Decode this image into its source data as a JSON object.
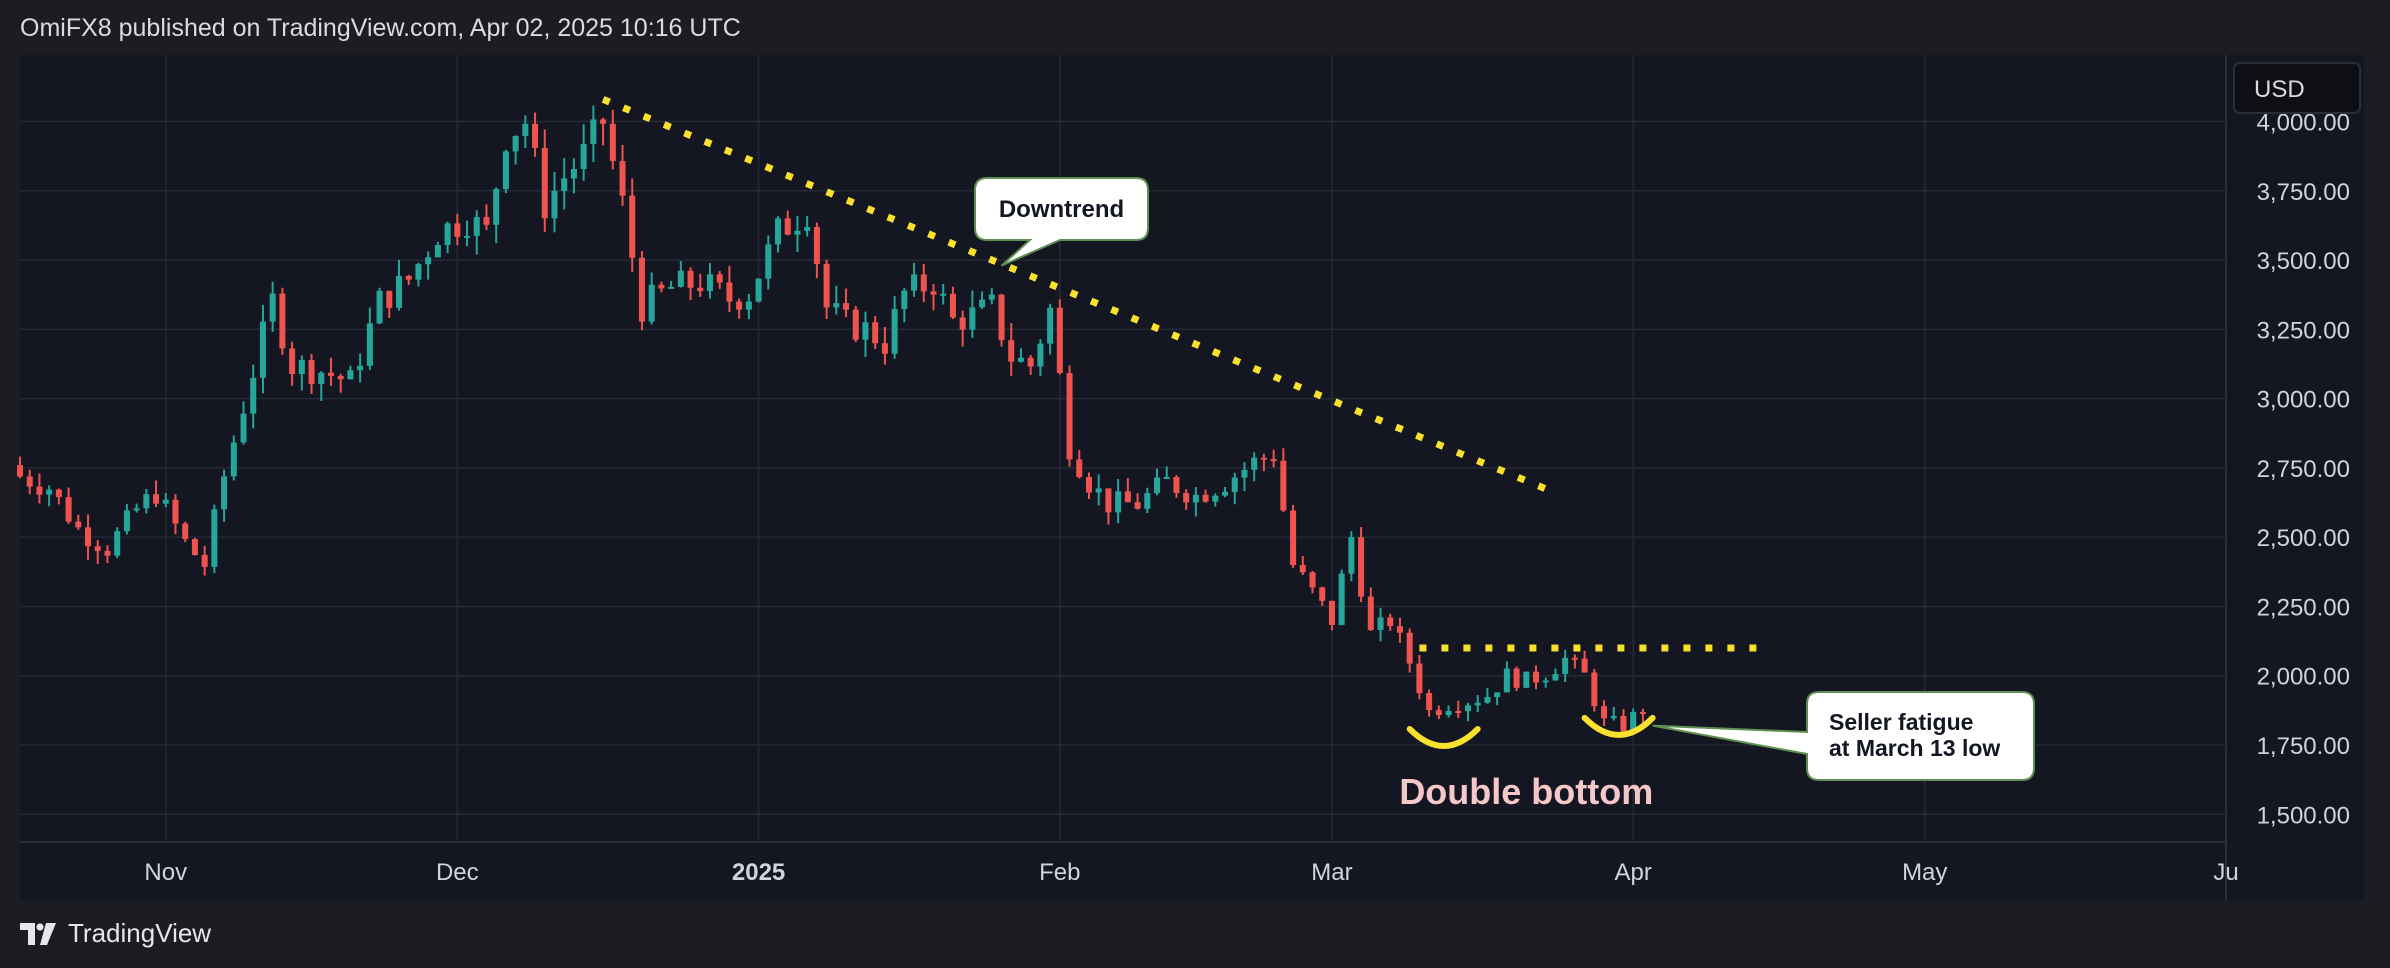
{
  "header": {
    "publish_info": "OmiFX8 published on TradingView.com, Apr 02, 2025 10:16 UTC"
  },
  "footer": {
    "brand": "TradingView"
  },
  "currency_button": {
    "label": "USD"
  },
  "colors": {
    "up": "#26a69a",
    "down": "#ef5350",
    "annotation": "#f9e12e",
    "label_pink": "#f6c7c9",
    "background": "#141721",
    "grid": "#262a36"
  },
  "chart_data": {
    "type": "candlestick",
    "title": "",
    "xlabel": "",
    "ylabel": "",
    "ylim": [
      1400,
      4240
    ],
    "x_range": [
      "2024-10-17",
      "2025-06-01"
    ],
    "yticks": [
      {
        "value": 4000,
        "label": "4,000.00"
      },
      {
        "value": 3750,
        "label": "3,750.00"
      },
      {
        "value": 3500,
        "label": "3,500.00"
      },
      {
        "value": 3250,
        "label": "3,250.00"
      },
      {
        "value": 3000,
        "label": "3,000.00"
      },
      {
        "value": 2750,
        "label": "2,750.00"
      },
      {
        "value": 2500,
        "label": "2,500.00"
      },
      {
        "value": 2250,
        "label": "2,250.00"
      },
      {
        "value": 2000,
        "label": "2,000.00"
      },
      {
        "value": 1750,
        "label": "1,750.00"
      },
      {
        "value": 1500,
        "label": "1,500.00"
      }
    ],
    "xticks": [
      {
        "date": "2024-11-01",
        "label": "Nov",
        "bold": false
      },
      {
        "date": "2024-12-01",
        "label": "Dec",
        "bold": false
      },
      {
        "date": "2025-01-01",
        "label": "2025",
        "bold": true
      },
      {
        "date": "2025-02-01",
        "label": "Feb",
        "bold": false
      },
      {
        "date": "2025-03-01",
        "label": "Mar",
        "bold": false
      },
      {
        "date": "2025-04-01",
        "label": "Apr",
        "bold": false
      },
      {
        "date": "2025-05-01",
        "label": "May",
        "bold": false
      },
      {
        "date": "2025-06-01",
        "label": "Ju",
        "bold": false
      }
    ],
    "anchors": [
      [
        "2024-10-17",
        2720
      ],
      [
        "2024-10-20",
        2680
      ],
      [
        "2024-10-23",
        2530
      ],
      [
        "2024-10-26",
        2460
      ],
      [
        "2024-10-29",
        2600
      ],
      [
        "2024-10-31",
        2660
      ],
      [
        "2024-11-03",
        2480
      ],
      [
        "2024-11-05",
        2400
      ],
      [
        "2024-11-07",
        2720
      ],
      [
        "2024-11-10",
        3100
      ],
      [
        "2024-11-12",
        3350
      ],
      [
        "2024-11-14",
        3120
      ],
      [
        "2024-11-17",
        3100
      ],
      [
        "2024-11-20",
        3060
      ],
      [
        "2024-11-23",
        3350
      ],
      [
        "2024-11-26",
        3430
      ],
      [
        "2024-11-29",
        3600
      ],
      [
        "2024-12-02",
        3650
      ],
      [
        "2024-12-04",
        3600
      ],
      [
        "2024-12-06",
        3950
      ],
      [
        "2024-12-08",
        4000
      ],
      [
        "2024-12-10",
        3700
      ],
      [
        "2024-12-12",
        3800
      ],
      [
        "2024-12-14",
        3880
      ],
      [
        "2024-12-16",
        4000
      ],
      [
        "2024-12-18",
        3700
      ],
      [
        "2024-12-20",
        3330
      ],
      [
        "2024-12-23",
        3400
      ],
      [
        "2024-12-26",
        3420
      ],
      [
        "2024-12-29",
        3360
      ],
      [
        "2024-12-31",
        3380
      ],
      [
        "2025-01-03",
        3600
      ],
      [
        "2025-01-06",
        3680
      ],
      [
        "2025-01-08",
        3330
      ],
      [
        "2025-01-10",
        3270
      ],
      [
        "2025-01-12",
        3250
      ],
      [
        "2025-01-14",
        3200
      ],
      [
        "2025-01-16",
        3380
      ],
      [
        "2025-01-19",
        3420
      ],
      [
        "2025-01-21",
        3280
      ],
      [
        "2025-01-23",
        3300
      ],
      [
        "2025-01-25",
        3330
      ],
      [
        "2025-01-27",
        3150
      ],
      [
        "2025-01-29",
        3120
      ],
      [
        "2025-01-31",
        3320
      ],
      [
        "2025-02-02",
        2830
      ],
      [
        "2025-02-04",
        2700
      ],
      [
        "2025-02-06",
        2620
      ],
      [
        "2025-02-09",
        2620
      ],
      [
        "2025-02-12",
        2700
      ],
      [
        "2025-02-15",
        2650
      ],
      [
        "2025-02-18",
        2700
      ],
      [
        "2025-02-21",
        2770
      ],
      [
        "2025-02-23",
        2800
      ],
      [
        "2025-02-25",
        2400
      ],
      [
        "2025-02-27",
        2300
      ],
      [
        "2025-03-01",
        2200
      ],
      [
        "2025-03-03",
        2500
      ],
      [
        "2025-03-05",
        2150
      ],
      [
        "2025-03-07",
        2200
      ],
      [
        "2025-03-09",
        2050
      ],
      [
        "2025-03-11",
        1870
      ],
      [
        "2025-03-13",
        1900
      ],
      [
        "2025-03-15",
        1910
      ],
      [
        "2025-03-17",
        1930
      ],
      [
        "2025-03-19",
        2000
      ],
      [
        "2025-03-21",
        1980
      ],
      [
        "2025-03-23",
        2010
      ],
      [
        "2025-03-25",
        2060
      ],
      [
        "2025-03-27",
        2000
      ],
      [
        "2025-03-29",
        1830
      ],
      [
        "2025-03-31",
        1820
      ],
      [
        "2025-04-02",
        1880
      ]
    ],
    "annotations": {
      "downtrend_line": {
        "from": [
          "2024-12-16",
          4080
        ],
        "to": [
          "2025-03-24",
          2660
        ]
      },
      "resistance_line": {
        "from": [
          "2025-03-10",
          2100
        ],
        "to": [
          "2025-04-14",
          2100
        ]
      },
      "double_bottom_arcs": [
        {
          "from": "2025-03-09",
          "to": "2025-03-16",
          "low": 1750
        },
        {
          "from": "2025-03-27",
          "to": "2025-04-03",
          "low": 1790
        }
      ],
      "downtrend_label": {
        "text": "Downtrend",
        "pointer": [
          "2025-01-26",
          3480
        ]
      },
      "double_bottom_label": {
        "text": "Double bottom",
        "at": [
          "2025-03-21",
          1580
        ]
      },
      "seller_fatigue_label": {
        "lines": [
          "Seller fatigue",
          "at March 13 low"
        ],
        "pointer": [
          "2025-04-03",
          1820
        ]
      }
    }
  }
}
